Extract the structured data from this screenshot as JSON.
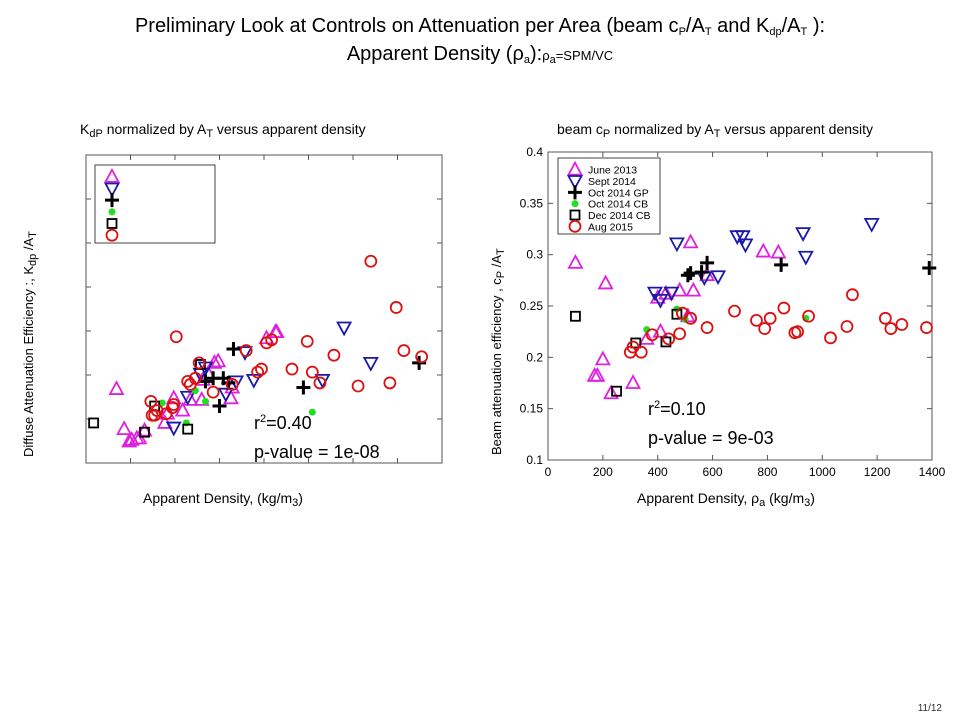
{
  "slide": {
    "title_line1_a": "Preliminary Look at Controls on Attenuation per Area (beam c",
    "title_line1_sub1": "P",
    "title_line1_b": "/A",
    "title_line1_sub2": "T",
    "title_line1_c": " and K",
    "title_line1_sub3": "dp",
    "title_line1_d": "/A",
    "title_line1_sub4": "T",
    "title_line1_e": " ):",
    "title_line2_a": "Apparent Density (ρ",
    "title_line2_sub1": "a",
    "title_line2_b": "):",
    "title_line2_c": "ρ",
    "title_line2_sub2": "a",
    "title_line2_d": "=SPM/VC",
    "page_number": "11/12"
  },
  "left_panel": {
    "title_a": "K",
    "title_sub1": "dP",
    "title_b": " normalized by A",
    "title_sub2": "T",
    "title_c": " versus apparent density",
    "ylabel_a": "Diffuse Attenuation Efficiency :, K",
    "ylabel_sub1": "dp",
    "ylabel_b": " /A",
    "ylabel_sub2": "T",
    "xlabel_a": "Apparent Density,  (kg/m",
    "xlabel_sub": "3",
    "xlabel_b": ")",
    "r2_prefix": "r",
    "r2_sup": "2",
    "r2_value": "=0.40",
    "pvalue": "p-value = 1e-08"
  },
  "right_panel": {
    "title_a": "beam c",
    "title_sub1": "P",
    "title_b": " normalized by A",
    "title_sub2": "T",
    "title_c": " versus apparent density",
    "ylabel_a": "Beam  attenuation efficiency , c",
    "ylabel_sub1": "P",
    "ylabel_b": " /A",
    "ylabel_sub2": "T",
    "xlabel_a": "Apparent Density, ρ",
    "xlabel_sub1": "a",
    "xlabel_b": " (kg/m",
    "xlabel_sub2": "3",
    "xlabel_c": ")",
    "r2_prefix": "r",
    "r2_sup": "2",
    "r2_value": "=0.10",
    "pvalue": "p-value = 9e-03"
  },
  "colors": {
    "june2013": "#e020e0",
    "sept2014": "#1a1aa8",
    "oct2014gp": "#000000",
    "oct2014cb": "#22dd22",
    "dec2014cb": "#000000",
    "aug2015": "#dd1111"
  },
  "chart_data": [
    {
      "type": "scatter",
      "title": "KdP normalized by AT versus apparent density",
      "xlabel": "Apparent Density,  (kg/m3)",
      "ylabel": "Diffuse Attenuation Efficiency :, Kdp /AT",
      "xlim": [
        0,
        1400
      ],
      "ylim": [
        0,
        1
      ],
      "x_tick_labels": [],
      "y_tick_labels": [],
      "legend_placement": "top-left",
      "series": [
        {
          "marker": "triangle-up",
          "color_key": "june2013",
          "points": [
            [
              120,
              0.24
            ],
            [
              150,
              0.11
            ],
            [
              170,
              0.07
            ],
            [
              180,
              0.075
            ],
            [
              200,
              0.08
            ],
            [
              210,
              0.08
            ],
            [
              230,
              0.105
            ],
            [
              310,
              0.13
            ],
            [
              320,
              0.16
            ],
            [
              345,
              0.21
            ],
            [
              380,
              0.17
            ],
            [
              410,
              0.205
            ],
            [
              455,
              0.205
            ],
            [
              460,
              0.27
            ],
            [
              480,
              0.29
            ],
            [
              505,
              0.325
            ],
            [
              520,
              0.33
            ],
            [
              570,
              0.21
            ],
            [
              575,
              0.245
            ],
            [
              710,
              0.405
            ],
            [
              745,
              0.425
            ],
            [
              750,
              0.425
            ]
          ]
        },
        {
          "marker": "triangle-down",
          "color_key": "sept2014",
          "points": [
            [
              345,
              0.115
            ],
            [
              400,
              0.215
            ],
            [
              450,
              0.29
            ],
            [
              470,
              0.31
            ],
            [
              550,
              0.225
            ],
            [
              590,
              0.265
            ],
            [
              625,
              0.36
            ],
            [
              660,
              0.27
            ],
            [
              930,
              0.27
            ],
            [
              1015,
              0.44
            ],
            [
              1120,
              0.325
            ]
          ]
        },
        {
          "marker": "plus",
          "color_key": "oct2014gp",
          "points": [
            [
              470,
              0.265
            ],
            [
              500,
              0.275
            ],
            [
              525,
              0.185
            ],
            [
              540,
              0.275
            ],
            [
              560,
              0.26
            ],
            [
              580,
              0.37
            ],
            [
              855,
              0.245
            ],
            [
              1310,
              0.325
            ]
          ]
        },
        {
          "marker": "dot",
          "color_key": "oct2014cb",
          "points": [
            [
              300,
              0.195
            ],
            [
              395,
              0.13
            ],
            [
              430,
              0.235
            ],
            [
              470,
              0.2
            ],
            [
              890,
              0.165
            ]
          ]
        },
        {
          "marker": "square",
          "color_key": "dec2014cb",
          "points": [
            [
              30,
              0.13
            ],
            [
              230,
              0.1
            ],
            [
              270,
              0.185
            ],
            [
              400,
              0.11
            ],
            [
              450,
              0.32
            ]
          ]
        },
        {
          "marker": "circle",
          "color_key": "aug2015",
          "points": [
            [
              255,
              0.2
            ],
            [
              260,
              0.155
            ],
            [
              270,
              0.155
            ],
            [
              280,
              0.17
            ],
            [
              315,
              0.16
            ],
            [
              340,
              0.18
            ],
            [
              345,
              0.19
            ],
            [
              355,
              0.41
            ],
            [
              400,
              0.265
            ],
            [
              410,
              0.255
            ],
            [
              430,
              0.275
            ],
            [
              445,
              0.325
            ],
            [
              500,
              0.23
            ],
            [
              575,
              0.255
            ],
            [
              630,
              0.365
            ],
            [
              675,
              0.295
            ],
            [
              690,
              0.305
            ],
            [
              710,
              0.39
            ],
            [
              730,
              0.4
            ],
            [
              810,
              0.305
            ],
            [
              870,
              0.395
            ],
            [
              890,
              0.295
            ],
            [
              920,
              0.26
            ],
            [
              975,
              0.35
            ],
            [
              1070,
              0.25
            ],
            [
              1120,
              0.655
            ],
            [
              1195,
              0.26
            ],
            [
              1220,
              0.505
            ],
            [
              1250,
              0.365
            ],
            [
              1320,
              0.345
            ]
          ]
        }
      ]
    },
    {
      "type": "scatter",
      "title": "beam cP normalized by AT versus apparent density",
      "xlabel": "Apparent Density, ρa (kg/m3)",
      "ylabel": "Beam  attenuation efficiency , cP /AT",
      "xlim": [
        0,
        1400
      ],
      "ylim": [
        0.1,
        0.4
      ],
      "x_ticks": [
        0,
        200,
        400,
        600,
        800,
        1000,
        1200,
        1400
      ],
      "y_ticks": [
        0.1,
        0.15,
        0.2,
        0.25,
        0.3,
        0.35,
        0.4
      ],
      "x_tick_labels": [
        "0",
        "200",
        "400",
        "600",
        "800",
        "1000",
        "1200",
        "1400"
      ],
      "y_tick_labels": [
        "0.1",
        "0.15",
        "0.2",
        "0.25",
        "0.3",
        "0.35",
        "0.4"
      ],
      "legend_placement": "top-left",
      "series": [
        {
          "name": "June 2013",
          "marker": "triangle-up",
          "color_key": "june2013",
          "points": [
            [
              100,
              0.292
            ],
            [
              170,
              0.182
            ],
            [
              180,
              0.182
            ],
            [
              200,
              0.198
            ],
            [
              210,
              0.272
            ],
            [
              230,
              0.165
            ],
            [
              310,
              0.175
            ],
            [
              360,
              0.218
            ],
            [
              400,
              0.258
            ],
            [
              410,
              0.225
            ],
            [
              430,
              0.262
            ],
            [
              480,
              0.265
            ],
            [
              510,
              0.24
            ],
            [
              520,
              0.312
            ],
            [
              530,
              0.265
            ],
            [
              580,
              0.28
            ],
            [
              785,
              0.303
            ],
            [
              840,
              0.302
            ]
          ]
        },
        {
          "name": "Sept 2014",
          "marker": "triangle-down",
          "color_key": "sept2014",
          "points": [
            [
              390,
              0.263
            ],
            [
              410,
              0.256
            ],
            [
              450,
              0.263
            ],
            [
              470,
              0.311
            ],
            [
              570,
              0.278
            ],
            [
              620,
              0.279
            ],
            [
              690,
              0.318
            ],
            [
              710,
              0.318
            ],
            [
              720,
              0.31
            ],
            [
              930,
              0.321
            ],
            [
              940,
              0.298
            ],
            [
              1180,
              0.33
            ]
          ]
        },
        {
          "name": "Oct 2014 GP",
          "marker": "plus",
          "color_key": "oct2014gp",
          "points": [
            [
              510,
              0.28
            ],
            [
              520,
              0.282
            ],
            [
              560,
              0.283
            ],
            [
              580,
              0.292
            ],
            [
              850,
              0.29
            ],
            [
              1390,
              0.287
            ]
          ]
        },
        {
          "name": "Oct 2014 CB",
          "marker": "dot",
          "color_key": "oct2014cb",
          "points": [
            [
              360,
              0.227
            ],
            [
              470,
              0.247
            ],
            [
              500,
              0.237
            ],
            [
              940,
              0.238
            ]
          ]
        },
        {
          "name": "Dec 2014 CB",
          "marker": "square",
          "color_key": "dec2014cb",
          "points": [
            [
              100,
              0.24
            ],
            [
              250,
              0.167
            ],
            [
              320,
              0.214
            ],
            [
              430,
              0.215
            ],
            [
              470,
              0.242
            ]
          ]
        },
        {
          "name": "Aug 2015",
          "marker": "circle",
          "color_key": "aug2015",
          "points": [
            [
              300,
              0.205
            ],
            [
              310,
              0.21
            ],
            [
              340,
              0.205
            ],
            [
              380,
              0.222
            ],
            [
              440,
              0.218
            ],
            [
              480,
              0.223
            ],
            [
              490,
              0.243
            ],
            [
              520,
              0.238
            ],
            [
              580,
              0.229
            ],
            [
              680,
              0.245
            ],
            [
              760,
              0.236
            ],
            [
              790,
              0.228
            ],
            [
              810,
              0.238
            ],
            [
              860,
              0.248
            ],
            [
              900,
              0.224
            ],
            [
              910,
              0.225
            ],
            [
              950,
              0.24
            ],
            [
              1030,
              0.219
            ],
            [
              1090,
              0.23
            ],
            [
              1110,
              0.261
            ],
            [
              1230,
              0.238
            ],
            [
              1250,
              0.228
            ],
            [
              1290,
              0.232
            ],
            [
              1380,
              0.229
            ]
          ]
        }
      ]
    }
  ]
}
